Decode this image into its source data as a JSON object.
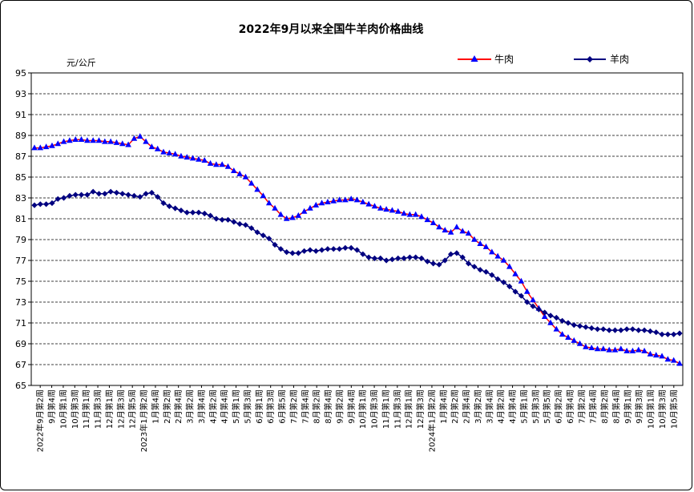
{
  "chart_data": {
    "type": "line",
    "title": "2022年9月以来全国牛羊肉价格曲线",
    "ylabel": "元/公斤",
    "xlabel": "",
    "ylim": [
      65,
      95
    ],
    "yticks": [
      65,
      67,
      69,
      71,
      73,
      75,
      77,
      79,
      81,
      83,
      85,
      87,
      89,
      91,
      93,
      95
    ],
    "grid": "horizontal dashed",
    "legend": "top-right",
    "x_tick_labels": [
      "2022年9月第2周",
      "9月第4周",
      "10月第1周",
      "10月第3周",
      "11月第1周",
      "11月第3周",
      "12月第1周",
      "12月第3周",
      "12月第5周",
      "2023年1月第2周",
      "1月第4周",
      "2月第2周",
      "2月第4周",
      "3月第2周",
      "3月第4周",
      "4月第2周",
      "4月第4周",
      "5月第1周",
      "5月第3周",
      "6月第1周",
      "6月第3周",
      "6月第5周",
      "7月第2周",
      "7月第4周",
      "8月第2周",
      "8月第4周",
      "9月第2周",
      "9月第4周",
      "10月第1周",
      "10月第3周",
      "11月第1周",
      "11月第3周",
      "12月第1周",
      "12月第3周",
      "2024年1月第2周",
      "1月第4周",
      "2月第2周",
      "2月第4周",
      "3月第2周",
      "3月第4周",
      "4月第2周",
      "4月第4周",
      "5月第1周",
      "5月第3周",
      "5月第5周",
      "6月第2周",
      "6月第4周",
      "7月第2周",
      "7月第4周",
      "8月第2周",
      "8月第4周",
      "9月第1周",
      "9月第3周",
      "10月第1周",
      "10月第3周",
      "10月第5周"
    ],
    "series": [
      {
        "name": "牛肉",
        "color": "#FF0000",
        "marker_color": "#0000FF",
        "marker": "triangle",
        "values": [
          87.8,
          87.8,
          87.9,
          88.0,
          88.2,
          88.4,
          88.5,
          88.6,
          88.6,
          88.5,
          88.5,
          88.5,
          88.4,
          88.4,
          88.3,
          88.2,
          88.1,
          88.7,
          88.9,
          88.4,
          87.9,
          87.7,
          87.4,
          87.3,
          87.2,
          87.0,
          86.9,
          86.8,
          86.7,
          86.6,
          86.3,
          86.2,
          86.2,
          86.0,
          85.6,
          85.3,
          85.0,
          84.4,
          83.8,
          83.2,
          82.5,
          82.0,
          81.4,
          81.0,
          81.1,
          81.3,
          81.7,
          82.0,
          82.3,
          82.5,
          82.6,
          82.7,
          82.8,
          82.8,
          82.9,
          82.8,
          82.6,
          82.4,
          82.2,
          82.0,
          81.9,
          81.8,
          81.7,
          81.5,
          81.4,
          81.4,
          81.2,
          80.9,
          80.6,
          80.2,
          79.9,
          79.7,
          80.2,
          79.8,
          79.6,
          79.0,
          78.6,
          78.3,
          77.8,
          77.4,
          77.0,
          76.4,
          75.7,
          75.0,
          74.0,
          73.2,
          72.4,
          71.6,
          71.0,
          70.4,
          69.9,
          69.6,
          69.3,
          69.0,
          68.7,
          68.6,
          68.5,
          68.5,
          68.4,
          68.4,
          68.5,
          68.3,
          68.3,
          68.4,
          68.3,
          68.0,
          67.9,
          67.8,
          67.5,
          67.4,
          67.1
        ]
      },
      {
        "name": "羊肉",
        "color": "#000080",
        "marker_color": "#000080",
        "marker": "diamond",
        "values": [
          82.3,
          82.4,
          82.4,
          82.5,
          82.9,
          83.0,
          83.2,
          83.3,
          83.3,
          83.3,
          83.6,
          83.4,
          83.4,
          83.6,
          83.5,
          83.4,
          83.3,
          83.2,
          83.1,
          83.4,
          83.5,
          83.1,
          82.5,
          82.2,
          82.0,
          81.8,
          81.6,
          81.6,
          81.6,
          81.5,
          81.3,
          81.0,
          80.9,
          80.9,
          80.7,
          80.5,
          80.4,
          80.1,
          79.7,
          79.4,
          79.1,
          78.5,
          78.1,
          77.8,
          77.7,
          77.7,
          77.9,
          78.0,
          77.9,
          78.0,
          78.1,
          78.1,
          78.1,
          78.2,
          78.2,
          78.0,
          77.6,
          77.3,
          77.2,
          77.2,
          77.0,
          77.1,
          77.2,
          77.2,
          77.3,
          77.3,
          77.2,
          76.9,
          76.7,
          76.6,
          77.0,
          77.6,
          77.7,
          77.3,
          76.7,
          76.4,
          76.1,
          75.9,
          75.6,
          75.2,
          74.9,
          74.5,
          74.0,
          73.6,
          73.0,
          72.6,
          72.3,
          72.0,
          71.7,
          71.5,
          71.2,
          71.0,
          70.8,
          70.7,
          70.6,
          70.5,
          70.4,
          70.4,
          70.3,
          70.3,
          70.3,
          70.4,
          70.4,
          70.3,
          70.3,
          70.2,
          70.1,
          69.9,
          69.9,
          69.9,
          70.0
        ]
      }
    ]
  }
}
